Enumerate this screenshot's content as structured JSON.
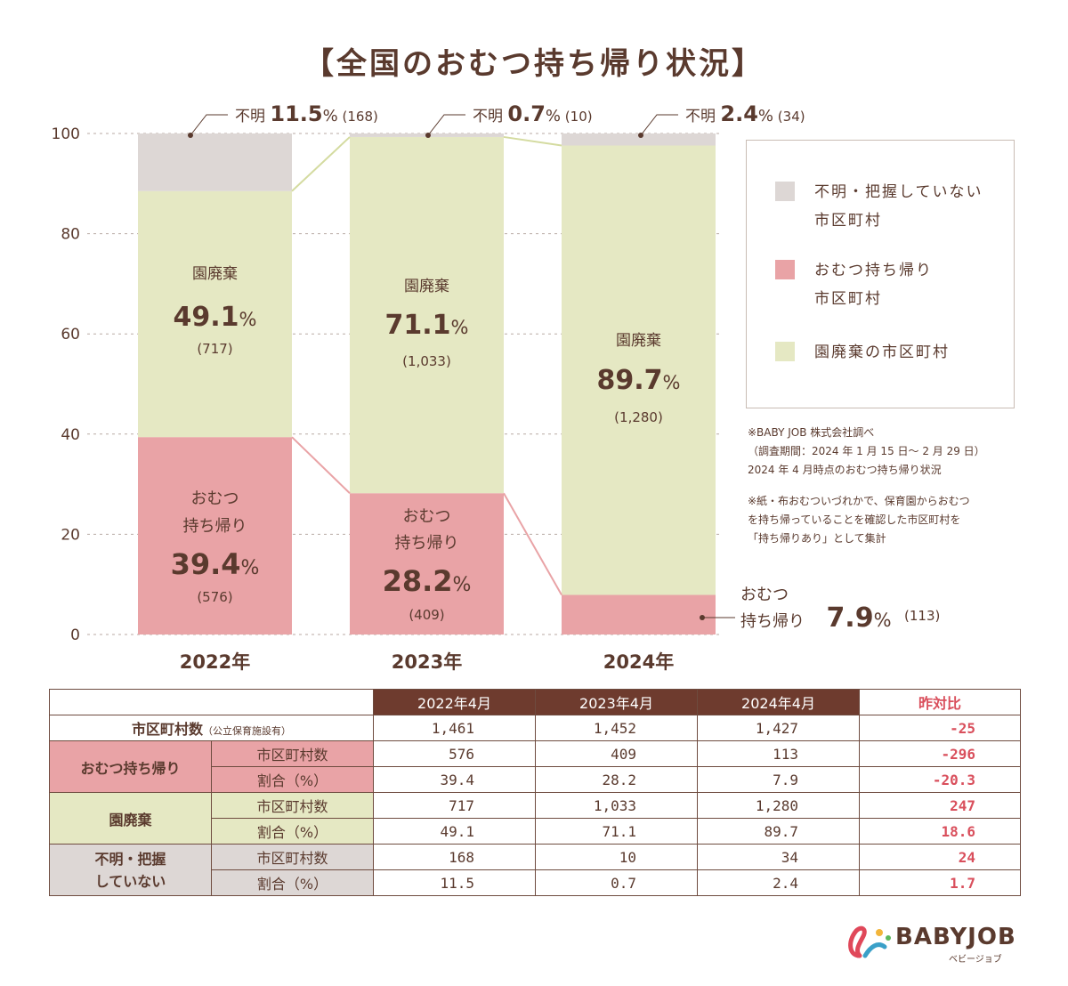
{
  "title": "【全国のおむつ持ち帰り状況】",
  "colors": {
    "unknown": "#ddd7d5",
    "diaper": "#e9a3a6",
    "dispose": "#e5e8c3",
    "text": "#5a3a2e",
    "accent": "#d94f5c",
    "header": "#6e3b2e"
  },
  "chart_data": {
    "type": "bar",
    "stacked": true,
    "categories": [
      "2022年",
      "2023年",
      "2024年"
    ],
    "ylim": [
      0,
      100
    ],
    "yticks": [
      0,
      20,
      40,
      60,
      80,
      100
    ],
    "series": [
      {
        "key": "diaper",
        "name": "おむつ持ち帰り市区町村",
        "values": [
          39.4,
          28.2,
          7.9
        ],
        "counts": [
          "(576)",
          "(409)",
          "(113)"
        ],
        "label_lines": [
          "おむつ",
          "持ち帰り"
        ]
      },
      {
        "key": "dispose",
        "name": "園廃棄の市区町村",
        "values": [
          49.1,
          71.1,
          89.7
        ],
        "counts": [
          "(717)",
          "(1,033)",
          "(1,280)"
        ],
        "label_lines": [
          "園廃棄"
        ]
      },
      {
        "key": "unknown",
        "name": "不明・把握していない市区町村",
        "values": [
          11.5,
          0.7,
          2.4
        ],
        "counts": [
          "(168)",
          "(10)",
          "(34)"
        ],
        "label_lines": [
          "不明"
        ]
      }
    ],
    "pct_suffix": "%"
  },
  "legend": [
    {
      "key": "unknown",
      "label": "不明・把握していない\n市区町村"
    },
    {
      "key": "diaper",
      "label": "おむつ持ち帰り\n市区町村"
    },
    {
      "key": "dispose",
      "label": "園廃棄の市区町村"
    }
  ],
  "notes": {
    "line1": "※BABY JOB 株式会社調べ",
    "line2": "（調査期間：2024 年 1 月 15 日〜 2 月 29 日）",
    "line3": "2024 年 4 月時点のおむつ持ち帰り状況",
    "line4": "※紙・布おむついづれかで、保育園からおむつ",
    "line5": "を持ち帰っていることを確認した市区町村を",
    "line6": "「持ち帰りあり」として集計"
  },
  "table": {
    "headers": [
      "2022年4月",
      "2023年4月",
      "2024年4月"
    ],
    "yoy_header": "昨対比",
    "municipalities": {
      "label": "市区町村数",
      "note": "（公立保育施設有）",
      "values": [
        "1,461",
        "1,452",
        "1,427"
      ],
      "yoy": "-25"
    },
    "groups": {
      "diaper": {
        "label": "おむつ持ち帰り",
        "count_label": "市区町村数",
        "count_values": [
          "576",
          "409",
          "113"
        ],
        "count_yoy": "-296",
        "rate_label": "割合（%）",
        "rate_values": [
          "39.4",
          "28.2",
          "7.9"
        ],
        "rate_yoy": "-20.3"
      },
      "dispose": {
        "label": "園廃棄",
        "count_label": "市区町村数",
        "count_values": [
          "717",
          "1,033",
          "1,280"
        ],
        "count_yoy": "247",
        "rate_label": "割合（%）",
        "rate_values": [
          "49.1",
          "71.1",
          "89.7"
        ],
        "rate_yoy": "18.6"
      },
      "unknown": {
        "label_line1": "不明・把握",
        "label_line2": "していない",
        "count_label": "市区町村数",
        "count_values": [
          "168",
          "10",
          "34"
        ],
        "count_yoy": "24",
        "rate_label": "割合（%）",
        "rate_values": [
          "11.5",
          "0.7",
          "2.4"
        ],
        "rate_yoy": "1.7"
      }
    }
  },
  "logo": {
    "name": "BABYJOB",
    "kana": "ベビージョブ"
  }
}
